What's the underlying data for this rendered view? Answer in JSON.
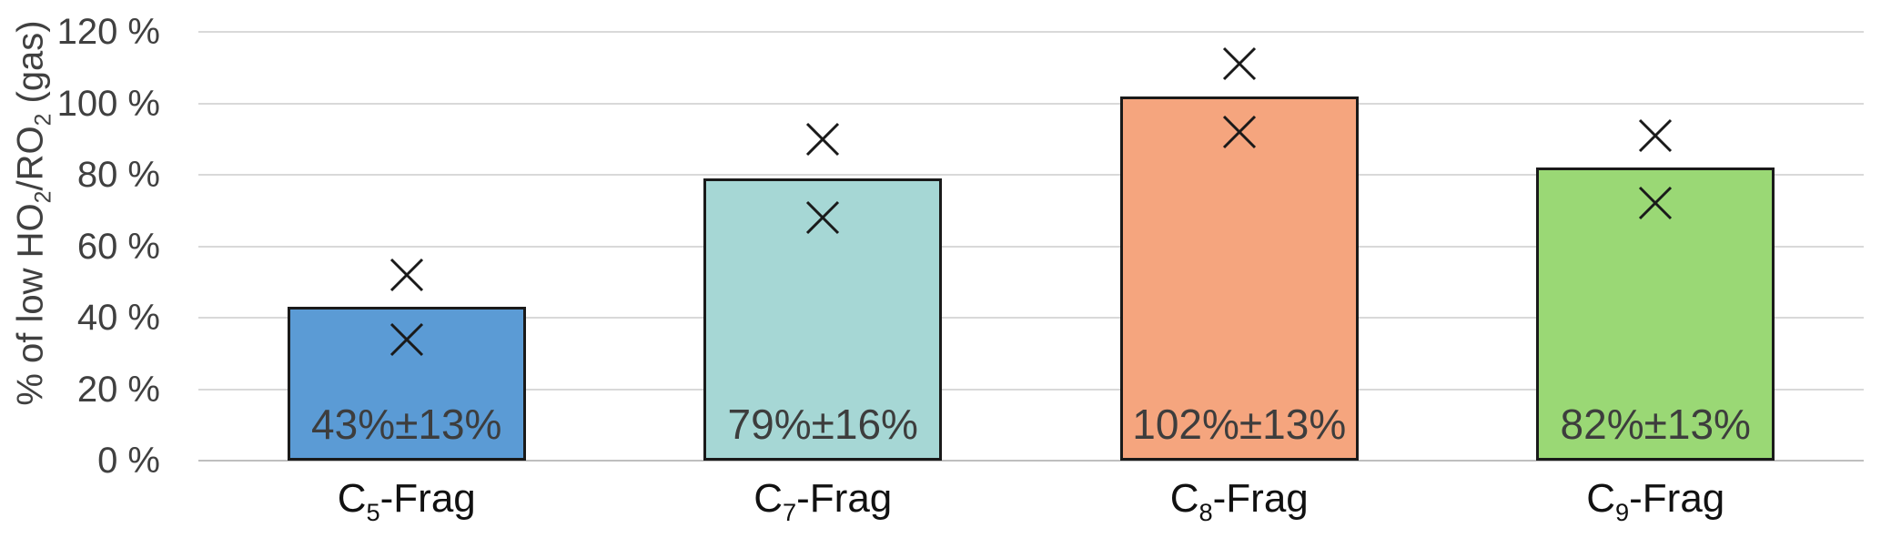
{
  "chart_data": {
    "type": "bar",
    "title": "",
    "ylabel": "% of low HO2/RO2 (gas)",
    "ylabel_segments": [
      {
        "t": "% of low HO"
      },
      {
        "t": "2",
        "sub": true
      },
      {
        "t": "/RO"
      },
      {
        "t": "2",
        "sub": true
      },
      {
        "t": " (gas)"
      }
    ],
    "categories_plain": [
      "C5-Frag",
      "C7-Frag",
      "C8-Frag",
      "C9-Frag"
    ],
    "categories": [
      [
        {
          "t": "C"
        },
        {
          "t": "5",
          "sub": true
        },
        {
          "t": "-Frag"
        }
      ],
      [
        {
          "t": "C"
        },
        {
          "t": "7",
          "sub": true
        },
        {
          "t": "-Frag"
        }
      ],
      [
        {
          "t": "C"
        },
        {
          "t": "8",
          "sub": true
        },
        {
          "t": "-Frag"
        }
      ],
      [
        {
          "t": "C"
        },
        {
          "t": "9",
          "sub": true
        },
        {
          "t": "-Frag"
        }
      ]
    ],
    "bar_series": {
      "name": "% of low HO2/RO2 (gas)",
      "values": [
        43,
        79,
        102,
        82
      ],
      "labels": [
        "43%±13%",
        "79%±16%",
        "102%±13%",
        "82%±13%"
      ],
      "fill_colors": [
        "#5B9BD5",
        "#A6D7D5",
        "#F5A57E",
        "#9AD875"
      ],
      "border_color": "#1a1a1a"
    },
    "marker_series": {
      "symbol": "x",
      "color": "#1a1a1a",
      "points_pct": [
        [
          52,
          34
        ],
        [
          90,
          68
        ],
        [
          111,
          92
        ],
        [
          91,
          72
        ]
      ]
    },
    "yticks": {
      "values": [
        0,
        20,
        40,
        60,
        80,
        100,
        120
      ],
      "labels": [
        "0 %",
        "20 %",
        "40 %",
        "60 %",
        "80 %",
        "100 %",
        "120 %"
      ]
    },
    "ylim": [
      0,
      120
    ],
    "grid": {
      "show": true,
      "color": "#D9D9D9",
      "axis_line_color": "#BFBFBF"
    },
    "legend": {
      "show": false
    },
    "text_colors": {
      "ticks": "#404040",
      "bar_labels": "#3d3d3d",
      "categories": "#111111",
      "axis_title": "#404040"
    }
  }
}
